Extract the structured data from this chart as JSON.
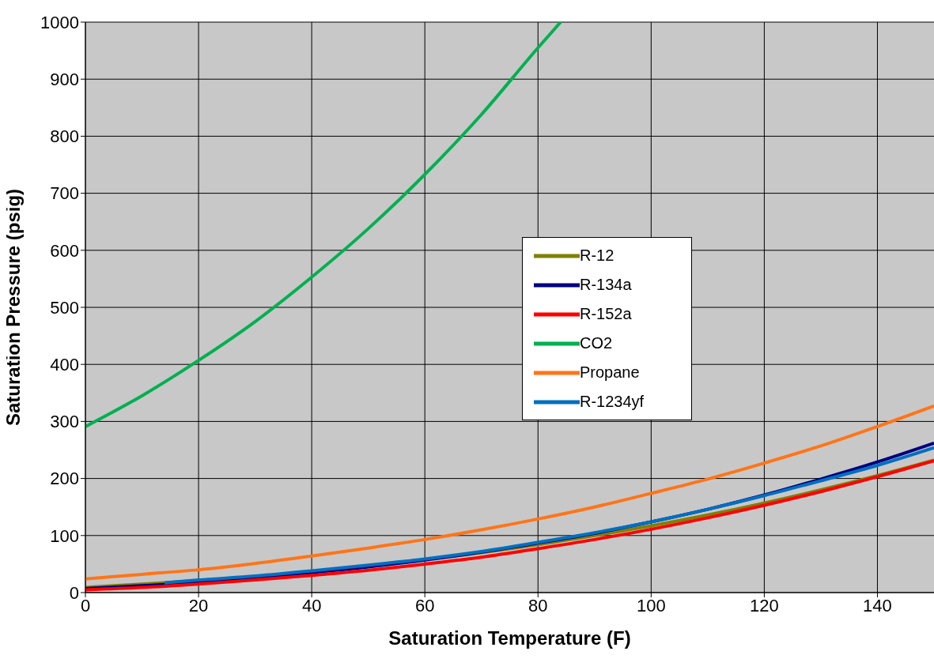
{
  "chart_data": {
    "type": "line",
    "xlabel": "Saturation Temperature (F)",
    "ylabel": "Saturation Pressure (psig)",
    "x": [
      0,
      10,
      20,
      30,
      40,
      50,
      60,
      70,
      80,
      90,
      100,
      110,
      120,
      130,
      140,
      150
    ],
    "series": [
      {
        "name": "R-12",
        "color": "#808000",
        "values": [
          9,
          15,
          21,
          28,
          37,
          47,
          58,
          70,
          84,
          100,
          117,
          136,
          157,
          180,
          205,
          232
        ]
      },
      {
        "name": "R-134a",
        "color": "#000080",
        "values": [
          7,
          12,
          18,
          26,
          35,
          45,
          57,
          71,
          87,
          104,
          124,
          146,
          171,
          199,
          229,
          262
        ]
      },
      {
        "name": "R-152a",
        "color": "#ff0000",
        "values": [
          5,
          9,
          15,
          22,
          30,
          39,
          50,
          62,
          77,
          93,
          111,
          131,
          153,
          177,
          203,
          231
        ]
      },
      {
        "name": "CO2",
        "color": "#00b050",
        "x": [
          0,
          10,
          20,
          30,
          40,
          50,
          60,
          70,
          80,
          84
        ],
        "values": [
          291,
          345,
          407,
          475,
          553,
          638,
          733,
          838,
          955,
          1000
        ]
      },
      {
        "name": "Propane",
        "color": "#ff7518",
        "values": [
          24,
          32,
          40,
          51,
          64,
          78,
          93,
          110,
          129,
          150,
          174,
          199,
          227,
          257,
          291,
          327
        ]
      },
      {
        "name": "R-1234yf",
        "color": "#0070c0",
        "x": [
          14,
          20,
          30,
          40,
          50,
          60,
          70,
          80,
          90,
          100,
          110,
          120,
          130,
          140,
          150
        ],
        "values": [
          17,
          22,
          29,
          38,
          48,
          59,
          72,
          88,
          105,
          124,
          146,
          170,
          196,
          223,
          254
        ]
      }
    ],
    "xlim": [
      0,
      150
    ],
    "xticks": [
      0,
      20,
      40,
      60,
      80,
      100,
      120,
      140
    ],
    "ylim": [
      0,
      1000
    ],
    "yticks": [
      0,
      100,
      200,
      300,
      400,
      500,
      600,
      700,
      800,
      900,
      1000
    ],
    "grid": true,
    "legend": "center",
    "marker": "none",
    "line_style": "solid"
  }
}
